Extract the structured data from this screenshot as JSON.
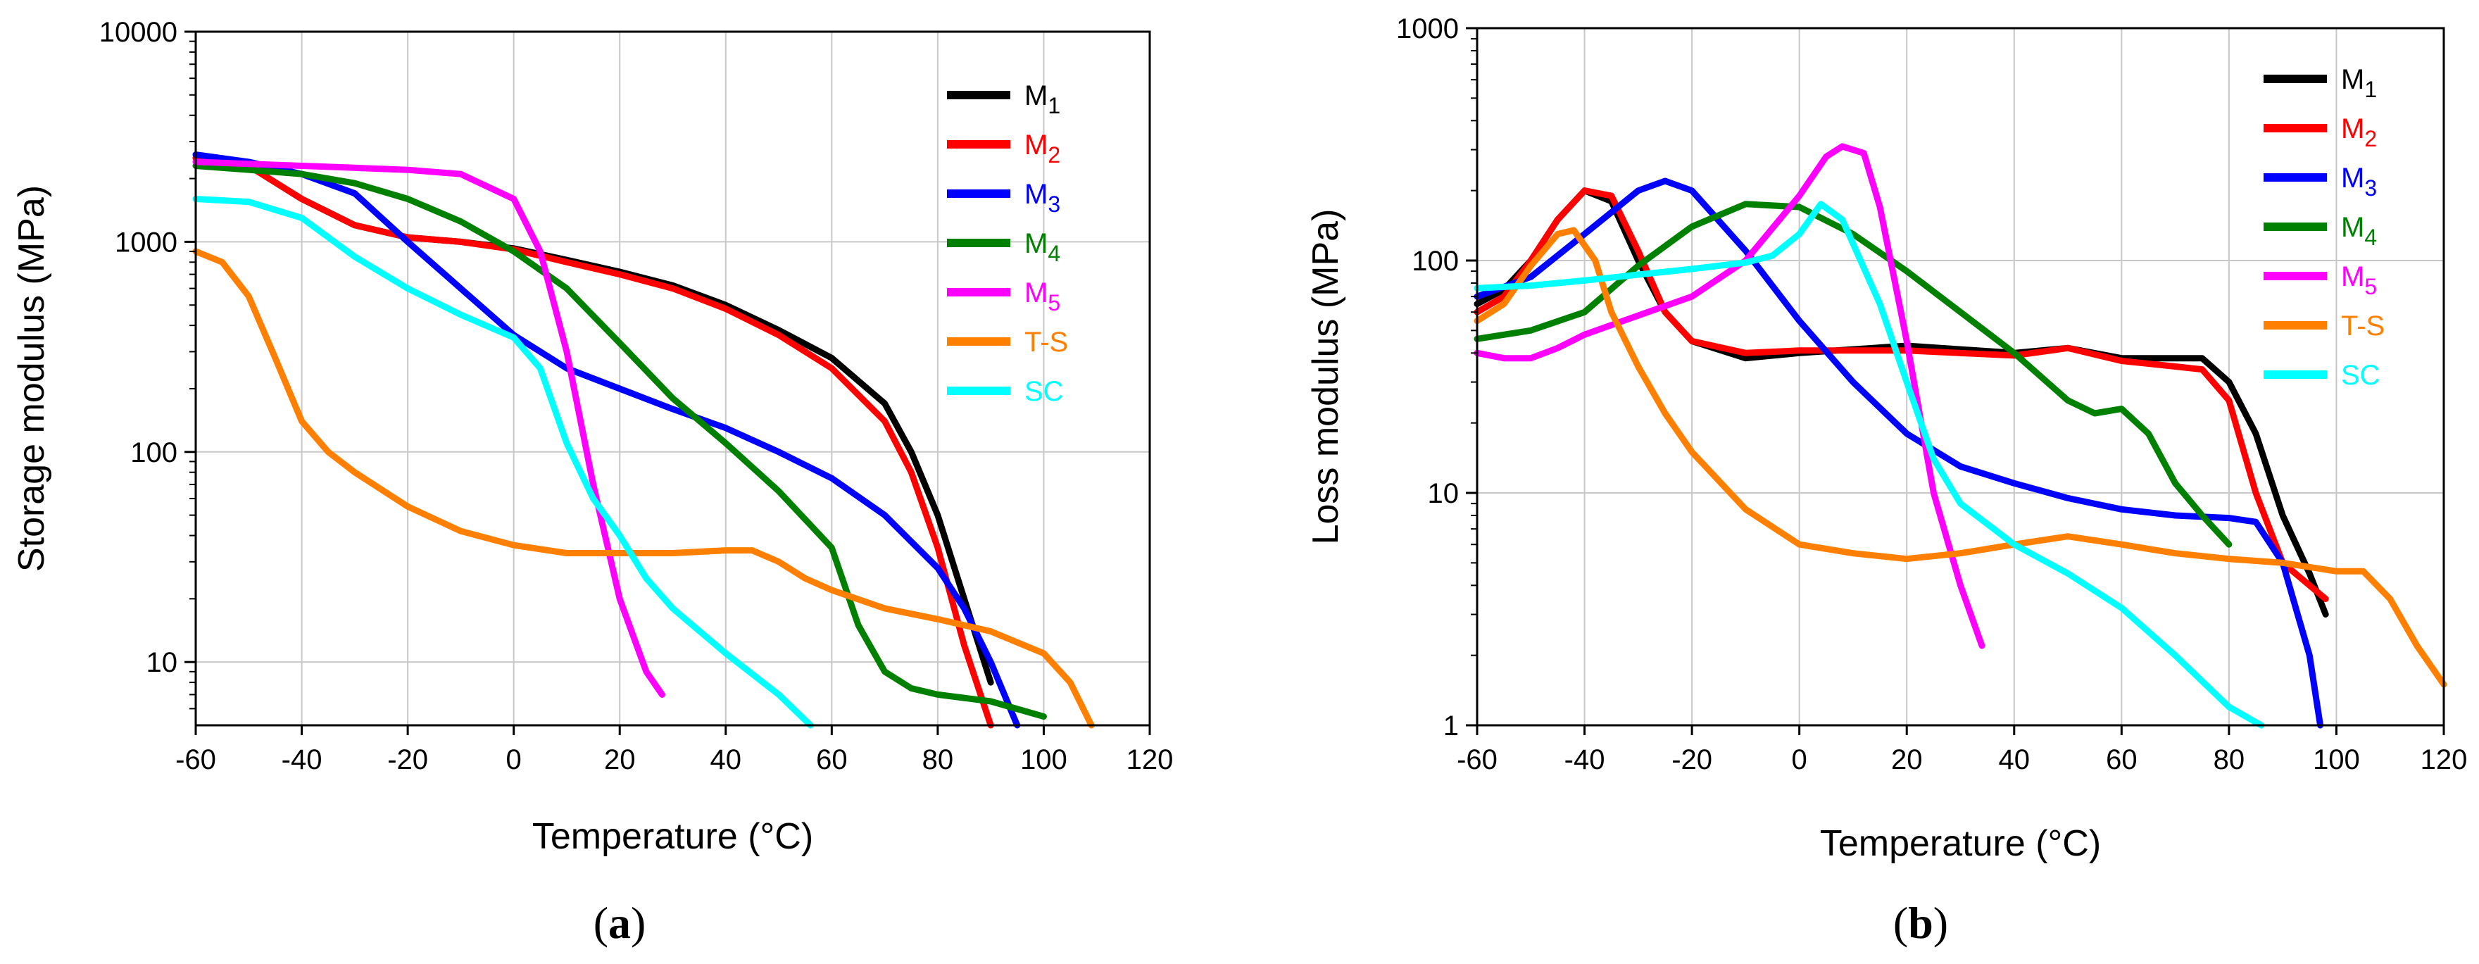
{
  "chart_data": [
    {
      "type": "line",
      "panel_label": "(a)",
      "xlabel": "Temperature (°C)",
      "ylabel": "Storage modulus (MPa)",
      "xlim": [
        -60,
        120
      ],
      "ylim": [
        5,
        10000
      ],
      "yscale": "log",
      "xticks": [
        -60,
        -40,
        -20,
        0,
        20,
        40,
        60,
        80,
        100,
        120
      ],
      "yticks": [
        10,
        100,
        1000,
        10000
      ],
      "grid": true,
      "legend_position": "top-right",
      "series": [
        {
          "name": "M",
          "sub": "1",
          "color": "#000000",
          "x": [
            -60,
            -50,
            -40,
            -30,
            -20,
            -10,
            0,
            10,
            20,
            30,
            40,
            50,
            60,
            70,
            75,
            80,
            85,
            90
          ],
          "y": [
            2500,
            2300,
            1600,
            1200,
            1050,
            1000,
            930,
            820,
            720,
            620,
            500,
            380,
            280,
            170,
            100,
            50,
            20,
            8
          ]
        },
        {
          "name": "M",
          "sub": "2",
          "color": "#ff0000",
          "x": [
            -60,
            -50,
            -40,
            -30,
            -20,
            -10,
            0,
            10,
            20,
            30,
            40,
            50,
            60,
            70,
            75,
            80,
            85,
            90
          ],
          "y": [
            2500,
            2300,
            1600,
            1200,
            1050,
            1000,
            920,
            800,
            700,
            600,
            480,
            360,
            250,
            140,
            80,
            35,
            12,
            5
          ]
        },
        {
          "name": "M",
          "sub": "3",
          "color": "#0000ff",
          "x": [
            -60,
            -50,
            -40,
            -30,
            -20,
            -10,
            0,
            10,
            20,
            30,
            40,
            50,
            60,
            70,
            80,
            85,
            90,
            95
          ],
          "y": [
            2600,
            2400,
            2100,
            1700,
            1000,
            600,
            360,
            250,
            200,
            160,
            130,
            100,
            75,
            50,
            28,
            18,
            10,
            5
          ]
        },
        {
          "name": "M",
          "sub": "4",
          "color": "#008000",
          "x": [
            -60,
            -50,
            -40,
            -30,
            -20,
            -10,
            0,
            10,
            20,
            30,
            40,
            50,
            60,
            65,
            70,
            75,
            80,
            90,
            100
          ],
          "y": [
            2300,
            2200,
            2100,
            1900,
            1600,
            1250,
            900,
            600,
            330,
            180,
            110,
            65,
            35,
            15,
            9,
            7.5,
            7,
            6.5,
            5.5
          ]
        },
        {
          "name": "M",
          "sub": "5",
          "color": "#ff00ff",
          "x": [
            -60,
            -50,
            -40,
            -30,
            -20,
            -10,
            0,
            5,
            10,
            15,
            20,
            25,
            28
          ],
          "y": [
            2400,
            2350,
            2300,
            2250,
            2200,
            2100,
            1600,
            900,
            300,
            70,
            20,
            9,
            7
          ]
        },
        {
          "name": "T-S",
          "sub": "",
          "color": "#ff8000",
          "x": [
            -60,
            -55,
            -50,
            -45,
            -40,
            -35,
            -30,
            -20,
            -10,
            0,
            10,
            20,
            30,
            40,
            45,
            50,
            55,
            60,
            70,
            80,
            90,
            100,
            105,
            109
          ],
          "y": [
            900,
            800,
            550,
            280,
            140,
            100,
            80,
            55,
            42,
            36,
            33,
            33,
            33,
            34,
            34,
            30,
            25,
            22,
            18,
            16,
            14,
            11,
            8,
            5
          ]
        },
        {
          "name": "SC",
          "sub": "",
          "color": "#00ffff",
          "x": [
            -60,
            -50,
            -40,
            -30,
            -20,
            -10,
            0,
            5,
            10,
            15,
            20,
            25,
            30,
            40,
            50,
            56
          ],
          "y": [
            1600,
            1550,
            1300,
            850,
            600,
            450,
            350,
            250,
            110,
            60,
            40,
            25,
            18,
            11,
            7,
            5
          ]
        }
      ]
    },
    {
      "type": "line",
      "panel_label": "(b)",
      "xlabel": "Temperature (°C)",
      "ylabel": "Loss modulus (MPa)",
      "xlim": [
        -60,
        120
      ],
      "ylim": [
        1,
        1000
      ],
      "yscale": "log",
      "xticks": [
        -60,
        -40,
        -20,
        0,
        20,
        40,
        60,
        80,
        100,
        120
      ],
      "yticks": [
        1,
        10,
        100,
        1000
      ],
      "grid": true,
      "legend_position": "top-right",
      "series": [
        {
          "name": "M",
          "sub": "1",
          "color": "#000000",
          "x": [
            -60,
            -55,
            -50,
            -45,
            -40,
            -35,
            -30,
            -25,
            -20,
            -10,
            0,
            20,
            40,
            50,
            60,
            70,
            75,
            80,
            85,
            90,
            95,
            98
          ],
          "y": [
            65,
            75,
            100,
            150,
            200,
            180,
            100,
            60,
            45,
            38,
            40,
            43,
            40,
            42,
            38,
            38,
            38,
            30,
            18,
            8,
            4.5,
            3
          ]
        },
        {
          "name": "M",
          "sub": "2",
          "color": "#ff0000",
          "x": [
            -60,
            -55,
            -50,
            -45,
            -40,
            -35,
            -30,
            -25,
            -20,
            -10,
            0,
            20,
            40,
            50,
            60,
            70,
            75,
            80,
            85,
            90,
            95,
            98
          ],
          "y": [
            60,
            70,
            100,
            150,
            200,
            190,
            110,
            60,
            45,
            40,
            41,
            41,
            39,
            42,
            37,
            35,
            34,
            25,
            10,
            5,
            4,
            3.5
          ]
        },
        {
          "name": "M",
          "sub": "3",
          "color": "#0000ff",
          "x": [
            -60,
            -50,
            -40,
            -30,
            -25,
            -20,
            -10,
            0,
            10,
            20,
            30,
            40,
            50,
            60,
            70,
            80,
            85,
            90,
            95,
            97
          ],
          "y": [
            70,
            85,
            130,
            200,
            220,
            200,
            110,
            55,
            30,
            18,
            13,
            11,
            9.5,
            8.5,
            8,
            7.8,
            7.5,
            5,
            2,
            1
          ]
        },
        {
          "name": "M",
          "sub": "4",
          "color": "#008000",
          "x": [
            -60,
            -50,
            -40,
            -30,
            -20,
            -10,
            0,
            10,
            20,
            30,
            40,
            50,
            55,
            60,
            65,
            70,
            75,
            80
          ],
          "y": [
            46,
            50,
            60,
            95,
            140,
            175,
            170,
            130,
            90,
            60,
            40,
            25,
            22,
            23,
            18,
            11,
            8,
            6
          ]
        },
        {
          "name": "M",
          "sub": "5",
          "color": "#ff00ff",
          "x": [
            -60,
            -55,
            -50,
            -45,
            -40,
            -30,
            -20,
            -10,
            0,
            5,
            8,
            12,
            15,
            20,
            25,
            30,
            34
          ],
          "y": [
            40,
            38,
            38,
            42,
            48,
            58,
            70,
            100,
            190,
            280,
            310,
            290,
            170,
            45,
            10,
            4,
            2.2
          ]
        },
        {
          "name": "T-S",
          "sub": "",
          "color": "#ff8000",
          "x": [
            -60,
            -55,
            -50,
            -45,
            -42,
            -38,
            -35,
            -30,
            -25,
            -20,
            -10,
            0,
            10,
            20,
            30,
            40,
            50,
            60,
            70,
            80,
            90,
            100,
            105,
            110,
            115,
            120
          ],
          "y": [
            55,
            65,
            95,
            130,
            135,
            100,
            60,
            35,
            22,
            15,
            8.5,
            6,
            5.5,
            5.2,
            5.5,
            6,
            6.5,
            6,
            5.5,
            5.2,
            5,
            4.6,
            4.6,
            3.5,
            2.2,
            1.5
          ]
        },
        {
          "name": "SC",
          "sub": "",
          "color": "#00ffff",
          "x": [
            -60,
            -50,
            -40,
            -30,
            -20,
            -10,
            -5,
            0,
            4,
            8,
            15,
            20,
            25,
            30,
            40,
            50,
            60,
            70,
            80,
            86
          ],
          "y": [
            76,
            78,
            82,
            87,
            92,
            98,
            105,
            130,
            175,
            150,
            65,
            30,
            14,
            9,
            6,
            4.5,
            3.2,
            2,
            1.2,
            1
          ]
        }
      ]
    }
  ]
}
